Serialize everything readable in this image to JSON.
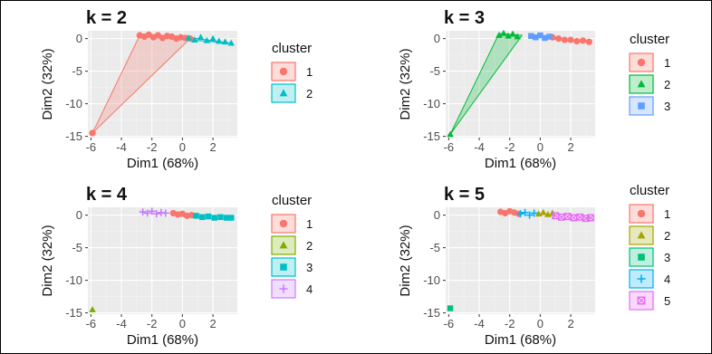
{
  "chart_data": [
    {
      "type": "scatter",
      "title": "k = 2",
      "xlabel": "Dim1 (68%)",
      "ylabel": "Dim2 (32%)",
      "xlim": [
        -6.2,
        3.6
      ],
      "ylim": [
        -15.2,
        1.2
      ],
      "xticks": [
        -6,
        -4,
        -2,
        0,
        2
      ],
      "yticks": [
        0,
        -5,
        -10,
        -15
      ],
      "grid": true,
      "legend_title": "cluster",
      "legend_position": "right",
      "series": [
        {
          "name": "1",
          "color": "#F8766D",
          "shape": "circle",
          "x": [
            -5.9,
            -2.8,
            -2.5,
            -2.2,
            -1.9,
            -1.6,
            -1.3,
            -1.0,
            -0.7,
            -0.4,
            -0.1,
            0.2,
            0.5
          ],
          "y": [
            -14.5,
            0.5,
            0.3,
            0.6,
            0.2,
            0.5,
            0.1,
            0.4,
            0.3,
            0.0,
            0.2,
            0.1,
            0.0
          ],
          "hull": [
            [
              -5.9,
              -14.5
            ],
            [
              -2.8,
              0.5
            ],
            [
              0.5,
              0.0
            ]
          ]
        },
        {
          "name": "2",
          "color": "#00BFC4",
          "shape": "triangle",
          "x": [
            0.4,
            0.8,
            1.2,
            1.6,
            2.0,
            2.4,
            2.8,
            3.2
          ],
          "y": [
            0.1,
            -0.2,
            0.2,
            -0.3,
            0.0,
            -0.4,
            -0.5,
            -0.7
          ],
          "hull": [
            [
              0.4,
              0.2
            ],
            [
              3.2,
              -0.7
            ],
            [
              0.4,
              -0.2
            ]
          ]
        }
      ]
    },
    {
      "type": "scatter",
      "title": "k = 3",
      "xlabel": "Dim1 (68%)",
      "ylabel": "Dim2 (32%)",
      "xlim": [
        -6.2,
        3.6
      ],
      "ylim": [
        -15.2,
        1.2
      ],
      "xticks": [
        -6,
        -4,
        -2,
        0,
        2
      ],
      "yticks": [
        0,
        -5,
        -10,
        -15
      ],
      "grid": true,
      "legend_title": "cluster",
      "legend_position": "right",
      "series": [
        {
          "name": "1",
          "color": "#F8766D",
          "shape": "circle",
          "x": [
            0.8,
            1.2,
            1.6,
            2.0,
            2.4,
            2.8,
            3.2
          ],
          "y": [
            0.2,
            0.0,
            -0.2,
            -0.2,
            -0.4,
            -0.3,
            -0.5
          ],
          "hull": [
            [
              0.8,
              0.2
            ],
            [
              3.2,
              -0.5
            ],
            [
              0.8,
              -0.1
            ]
          ]
        },
        {
          "name": "2",
          "color": "#00BA38",
          "shape": "triangle",
          "x": [
            -5.9,
            -2.7,
            -2.4,
            -2.1,
            -1.8,
            -1.5
          ],
          "y": [
            -14.7,
            0.5,
            0.8,
            0.4,
            0.7,
            0.3
          ],
          "hull": [
            [
              -5.9,
              -14.7
            ],
            [
              -2.7,
              0.8
            ],
            [
              -1.2,
              0.5
            ]
          ]
        },
        {
          "name": "3",
          "color": "#619CFF",
          "shape": "square",
          "x": [
            -0.6,
            -0.3,
            0.0,
            0.3,
            0.6
          ],
          "y": [
            0.4,
            0.2,
            0.5,
            0.1,
            0.3
          ]
        }
      ]
    },
    {
      "type": "scatter",
      "title": "k = 4",
      "xlabel": "Dim1 (68%)",
      "ylabel": "Dim2 (32%)",
      "xlim": [
        -6.2,
        3.6
      ],
      "ylim": [
        -15.2,
        1.2
      ],
      "xticks": [
        -6,
        -4,
        -2,
        0,
        2
      ],
      "yticks": [
        0,
        -5,
        -10,
        -15
      ],
      "grid": true,
      "legend_title": "cluster",
      "legend_position": "right",
      "series": [
        {
          "name": "1",
          "color": "#F8766D",
          "shape": "circle",
          "x": [
            -0.6,
            -0.3,
            0.0,
            0.3,
            0.6
          ],
          "y": [
            0.3,
            0.1,
            0.2,
            -0.1,
            0.0
          ]
        },
        {
          "name": "2",
          "color": "#7CAE00",
          "shape": "triangle",
          "x": [
            -5.9
          ],
          "y": [
            -14.5
          ]
        },
        {
          "name": "3",
          "color": "#00BFC4",
          "shape": "square",
          "x": [
            0.9,
            1.3,
            1.7,
            2.1,
            2.5,
            2.9,
            3.2
          ],
          "y": [
            -0.1,
            -0.3,
            -0.2,
            -0.4,
            -0.3,
            -0.4,
            -0.4
          ]
        },
        {
          "name": "4",
          "color": "#C77CFF",
          "shape": "cross",
          "x": [
            -2.6,
            -2.3,
            -2.0,
            -1.7,
            -1.4,
            -1.1
          ],
          "y": [
            0.5,
            0.3,
            0.6,
            0.2,
            0.4,
            0.3
          ]
        }
      ]
    },
    {
      "type": "scatter",
      "title": "k = 5",
      "xlabel": "Dim1 (68%)",
      "ylabel": "Dim2 (32%)",
      "xlim": [
        -6.2,
        3.6
      ],
      "ylim": [
        -15.2,
        1.2
      ],
      "xticks": [
        -6,
        -4,
        -2,
        0,
        2
      ],
      "yticks": [
        0,
        -5,
        -10,
        -15
      ],
      "grid": true,
      "legend_title": "cluster",
      "legend_position": "right",
      "series": [
        {
          "name": "1",
          "color": "#F8766D",
          "shape": "circle",
          "x": [
            -2.6,
            -2.3,
            -2.0,
            -1.7,
            -1.4
          ],
          "y": [
            0.5,
            0.3,
            0.6,
            0.4,
            0.2
          ]
        },
        {
          "name": "2",
          "color": "#A3A500",
          "shape": "triangle",
          "x": [
            -0.1,
            0.2,
            0.5,
            0.8
          ],
          "y": [
            0.2,
            0.4,
            0.1,
            0.3
          ]
        },
        {
          "name": "3",
          "color": "#00BF7D",
          "shape": "square",
          "x": [
            -5.9
          ],
          "y": [
            -14.3
          ]
        },
        {
          "name": "4",
          "color": "#00B0F6",
          "shape": "cross",
          "x": [
            -1.3,
            -1.0,
            -0.7,
            -0.4
          ],
          "y": [
            0.2,
            0.4,
            0.0,
            0.3
          ]
        },
        {
          "name": "5",
          "color": "#E76BF3",
          "shape": "boxed-x",
          "x": [
            1.0,
            1.4,
            1.8,
            2.2,
            2.6,
            3.0,
            3.3
          ],
          "y": [
            -0.1,
            -0.3,
            -0.2,
            -0.4,
            -0.3,
            -0.5,
            -0.4
          ]
        }
      ]
    }
  ]
}
